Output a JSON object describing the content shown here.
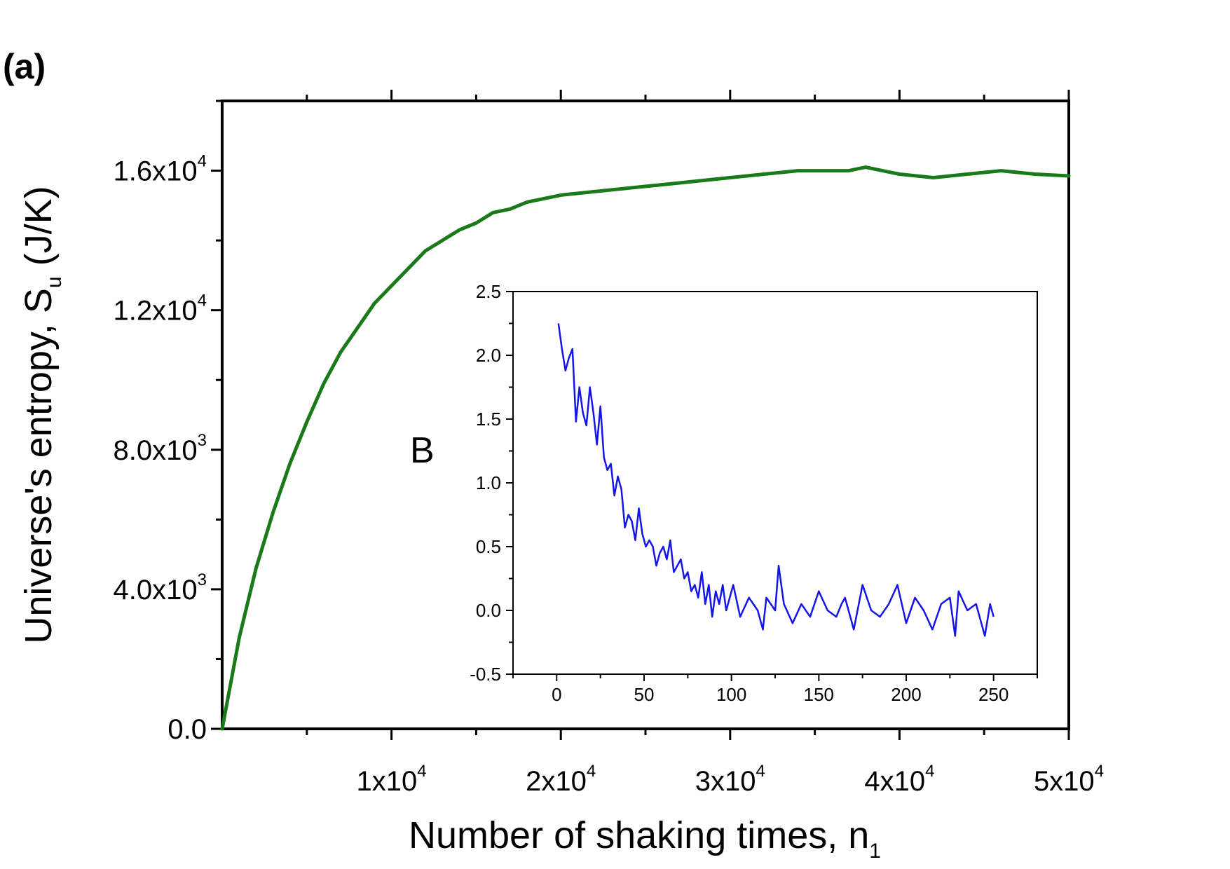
{
  "panel_label": "(a)",
  "main": {
    "xlabel": "Number of shaking times, n",
    "xlabel_sub": "1",
    "ylabel": "Universe's entropy, S",
    "ylabel_sub": "u",
    "ylabel_unit": "(J/K)",
    "line_color": "#1a7a1a"
  },
  "inset": {
    "ylabel": "B",
    "line_color": "#1515e8"
  },
  "chart_data": [
    {
      "type": "line",
      "title": "",
      "xlabel": "Number of shaking times, n1",
      "ylabel": "Universe's entropy, Su (J/K)",
      "xlim": [
        0,
        50000
      ],
      "ylim": [
        0,
        18000
      ],
      "x_ticks": [
        {
          "value": 10000,
          "mantissa": "1x10",
          "exp": "4"
        },
        {
          "value": 20000,
          "mantissa": "2x10",
          "exp": "4"
        },
        {
          "value": 30000,
          "mantissa": "3x10",
          "exp": "4"
        },
        {
          "value": 40000,
          "mantissa": "4x10",
          "exp": "4"
        },
        {
          "value": 50000,
          "mantissa": "5x10",
          "exp": "4"
        }
      ],
      "y_ticks": [
        {
          "value": 0,
          "mantissa": "0.0",
          "exp": ""
        },
        {
          "value": 4000,
          "mantissa": "4.0x10",
          "exp": "3"
        },
        {
          "value": 8000,
          "mantissa": "8.0x10",
          "exp": "3"
        },
        {
          "value": 12000,
          "mantissa": "1.2x10",
          "exp": "4"
        },
        {
          "value": 16000,
          "mantissa": "1.6x10",
          "exp": "4"
        }
      ],
      "series": [
        {
          "name": "Su",
          "x": [
            0,
            500,
            1000,
            1500,
            2000,
            2500,
            3000,
            4000,
            5000,
            6000,
            7000,
            8000,
            9000,
            10000,
            11000,
            12000,
            13000,
            14000,
            15000,
            16000,
            17000,
            18000,
            19000,
            20000,
            22000,
            24000,
            26000,
            28000,
            30000,
            32000,
            34000,
            36000,
            37000,
            38000,
            39000,
            40000,
            42000,
            44000,
            46000,
            48000,
            50000
          ],
          "y": [
            0,
            1300,
            2600,
            3600,
            4600,
            5400,
            6200,
            7600,
            8800,
            9900,
            10800,
            11500,
            12200,
            12700,
            13200,
            13700,
            14000,
            14300,
            14500,
            14800,
            14900,
            15100,
            15200,
            15300,
            15400,
            15500,
            15600,
            15700,
            15800,
            15900,
            16000,
            16000,
            16000,
            16100,
            16000,
            15900,
            15800,
            15900,
            16000,
            15900,
            15850
          ]
        }
      ]
    },
    {
      "type": "line",
      "title": "",
      "xlabel": "",
      "ylabel": "B",
      "xlim": [
        -25,
        275
      ],
      "ylim": [
        -0.5,
        2.5
      ],
      "x_tick_labels": [
        "0",
        "50",
        "100",
        "150",
        "200",
        "250"
      ],
      "y_tick_labels": [
        "-0.5",
        "0.0",
        "0.5",
        "1.0",
        "1.5",
        "2.0",
        "2.5"
      ],
      "series": [
        {
          "name": "B",
          "x": [
            1,
            3,
            5,
            7,
            9,
            11,
            13,
            15,
            17,
            19,
            21,
            23,
            25,
            27,
            29,
            31,
            33,
            35,
            37,
            39,
            41,
            43,
            45,
            47,
            49,
            51,
            53,
            55,
            57,
            59,
            61,
            63,
            65,
            67,
            69,
            71,
            73,
            75,
            77,
            79,
            81,
            83,
            85,
            87,
            89,
            91,
            93,
            95,
            97,
            99,
            101,
            105,
            110,
            115,
            118,
            120,
            125,
            127,
            130,
            135,
            140,
            145,
            150,
            155,
            160,
            163,
            165,
            170,
            175,
            180,
            185,
            190,
            195,
            200,
            205,
            210,
            215,
            220,
            225,
            228,
            230,
            235,
            240,
            245,
            248,
            250
          ],
          "y": [
            2.25,
            2.05,
            1.88,
            1.98,
            2.05,
            1.48,
            1.75,
            1.55,
            1.45,
            1.75,
            1.55,
            1.3,
            1.6,
            1.2,
            1.1,
            1.15,
            0.9,
            1.05,
            0.95,
            0.65,
            0.75,
            0.7,
            0.55,
            0.8,
            0.6,
            0.5,
            0.55,
            0.5,
            0.35,
            0.45,
            0.5,
            0.4,
            0.55,
            0.3,
            0.35,
            0.4,
            0.25,
            0.3,
            0.15,
            0.2,
            0.1,
            0.3,
            0.05,
            0.2,
            -0.05,
            0.15,
            0.05,
            0.2,
            0.0,
            0.1,
            0.2,
            -0.05,
            0.1,
            0.0,
            -0.15,
            0.1,
            0.0,
            0.35,
            0.05,
            -0.1,
            0.05,
            -0.05,
            0.15,
            0.0,
            -0.05,
            0.05,
            0.1,
            -0.15,
            0.2,
            0.0,
            -0.05,
            0.05,
            0.2,
            -0.1,
            0.1,
            0.0,
            -0.15,
            0.05,
            0.1,
            -0.2,
            0.15,
            0.0,
            0.05,
            -0.2,
            0.05,
            -0.05
          ]
        }
      ]
    }
  ]
}
